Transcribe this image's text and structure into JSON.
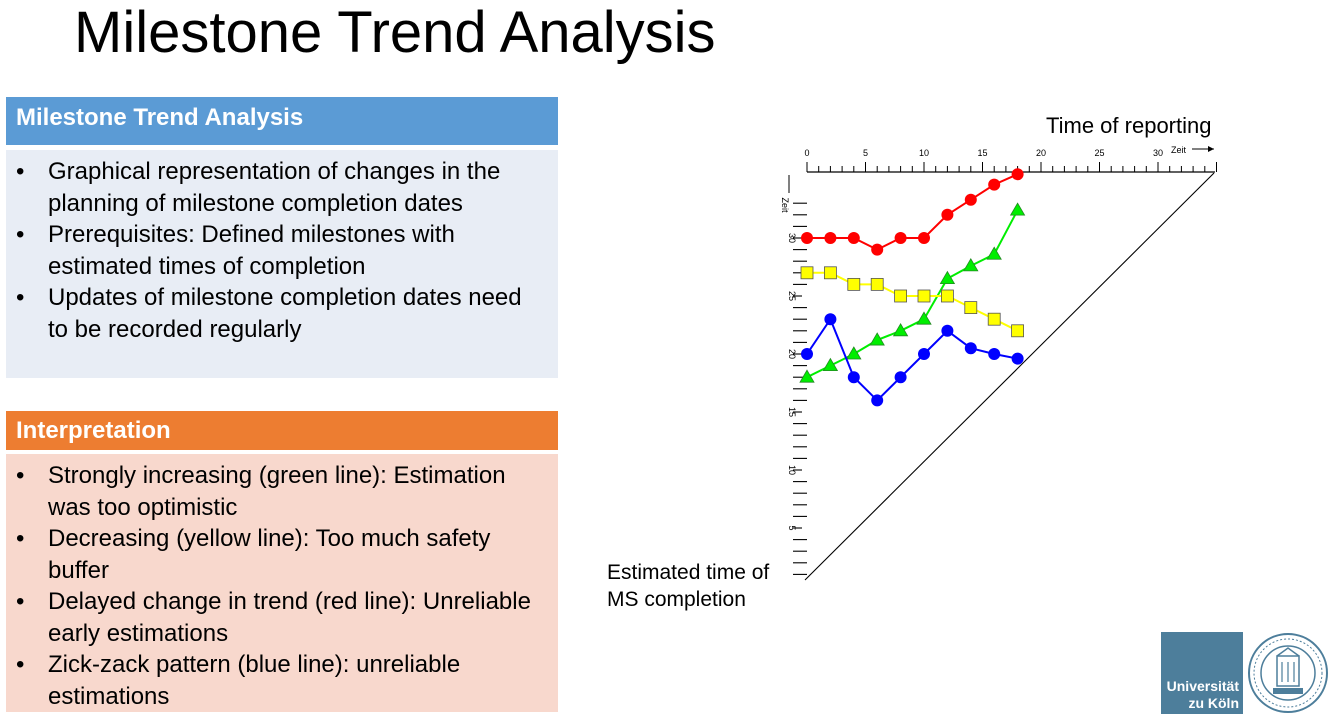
{
  "slide": {
    "title": "Milestone Trend Analysis"
  },
  "box_mta": {
    "heading": "Milestone Trend Analysis",
    "bullets": [
      "Graphical representation of changes in the planning of milestone completion dates",
      "Prerequisites: Defined milestones with estimated times of completion",
      "Updates of milestone completion dates need to be recorded regularly"
    ],
    "header_color": "#5b9bd5",
    "body_color": "#e8edf5"
  },
  "box_interp": {
    "heading": "Interpretation",
    "bullets": [
      "Strongly increasing (green line): Estimation was too optimistic",
      "Decreasing (yellow line): Too much safety buffer",
      "Delayed change in trend (red line): Unreliable early estimations",
      "Zick-zack pattern (blue line): unreliable estimations"
    ],
    "header_color": "#ed7d31",
    "body_color": "#f8d8cd"
  },
  "chart_data": {
    "type": "line",
    "xlabel": "Time of reporting",
    "ylabel": "Estimated time of MS completion",
    "x_axis_tag": "Zeit",
    "y_axis_tag": "Zeit",
    "x_ticks": [
      0,
      5,
      10,
      15,
      20,
      25,
      30
    ],
    "y_ticks": [
      5,
      10,
      15,
      20,
      25,
      30
    ],
    "xlim": [
      0,
      35
    ],
    "ylim": [
      0,
      35
    ],
    "x_axis_position": "top",
    "y_axis_inverted_labels": true,
    "diagonal": true,
    "series": [
      {
        "color": "#ff0000",
        "marker": "circle",
        "x": [
          0,
          2,
          4,
          6,
          8,
          10,
          12,
          14,
          16,
          18
        ],
        "y": [
          30,
          30,
          30,
          29,
          30,
          30,
          32,
          33.3,
          34.6,
          35.5
        ]
      },
      {
        "color": "#00ee00",
        "marker": "triangle",
        "x": [
          0,
          2,
          4,
          6,
          8,
          10,
          12,
          14,
          16,
          18
        ],
        "y": [
          18,
          19,
          20,
          21.2,
          22,
          23,
          26.5,
          27.6,
          28.6,
          32.4
        ]
      },
      {
        "color": "#ffff00",
        "marker": "square",
        "x": [
          0,
          2,
          4,
          6,
          8,
          10,
          12,
          14,
          16,
          18
        ],
        "y": [
          27,
          27,
          26,
          26,
          25,
          25,
          25,
          24,
          23,
          22
        ]
      },
      {
        "color": "#0000ff",
        "marker": "circle",
        "x": [
          0,
          2,
          4,
          6,
          8,
          10,
          12,
          14,
          16,
          18
        ],
        "y": [
          20,
          23,
          18,
          16,
          18,
          20,
          22,
          20.5,
          20,
          19.6
        ]
      }
    ]
  },
  "logo": {
    "line1": "Universität",
    "line2": "zu Köln",
    "seal_color": "#4d7e9b"
  }
}
